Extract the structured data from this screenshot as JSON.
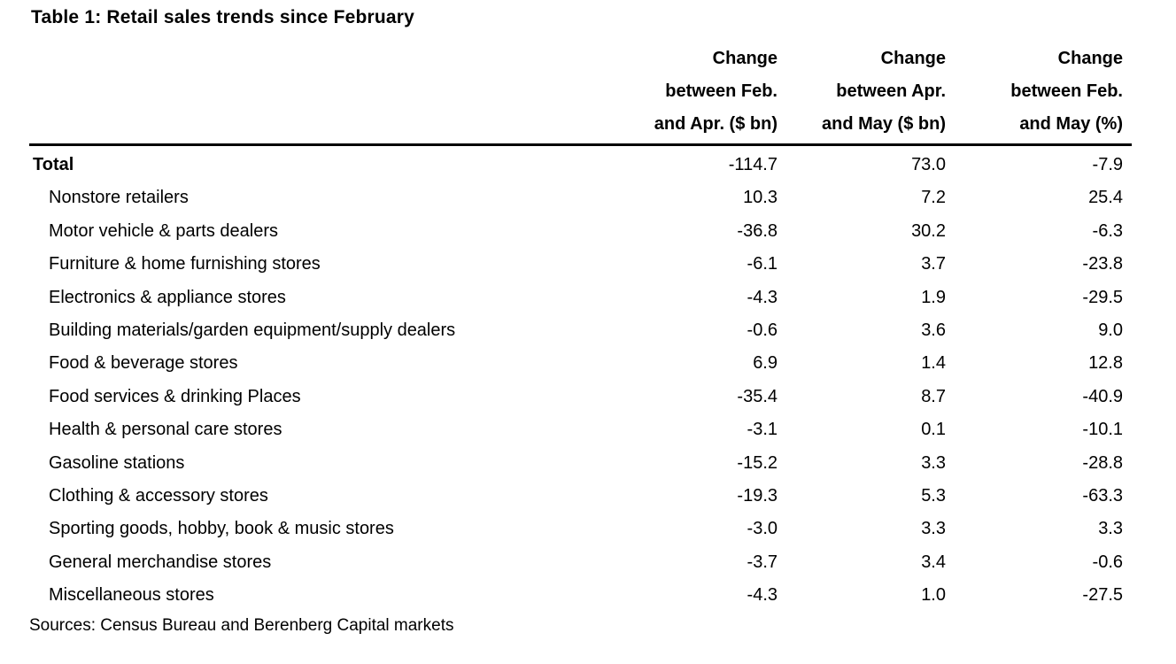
{
  "title": "Table 1: Retail sales trends since February",
  "source": "Sources: Census Bureau and Berenberg Capital markets",
  "chart_data": {
    "type": "table",
    "title": "Table 1: Retail sales trends since February",
    "column_headers": [
      "Change\nbetween Feb.\nand Apr. ($ bn)",
      "Change\nbetween Apr.\nand May ($ bn)",
      "Change\nbetween Feb.\nand May (%)"
    ],
    "columns": [
      "Change between Feb. and Apr. ($ bn)",
      "Change between Apr. and May ($ bn)",
      "Change between Feb. and May (%)"
    ],
    "rows": [
      {
        "label": "Total",
        "bold": true,
        "values": [
          "-114.7",
          "73.0",
          "-7.9"
        ]
      },
      {
        "label": "Nonstore retailers",
        "bold": false,
        "values": [
          "10.3",
          "7.2",
          "25.4"
        ]
      },
      {
        "label": "Motor vehicle & parts dealers",
        "bold": false,
        "values": [
          "-36.8",
          "30.2",
          "-6.3"
        ]
      },
      {
        "label": "Furniture & home furnishing stores",
        "bold": false,
        "values": [
          "-6.1",
          "3.7",
          "-23.8"
        ]
      },
      {
        "label": "Electronics & appliance stores",
        "bold": false,
        "values": [
          "-4.3",
          "1.9",
          "-29.5"
        ]
      },
      {
        "label": "Building materials/garden equipment/supply dealers",
        "bold": false,
        "values": [
          "-0.6",
          "3.6",
          "9.0"
        ]
      },
      {
        "label": "Food & beverage stores",
        "bold": false,
        "values": [
          "6.9",
          "1.4",
          "12.8"
        ]
      },
      {
        "label": "Food services & drinking Places",
        "bold": false,
        "values": [
          "-35.4",
          "8.7",
          "-40.9"
        ]
      },
      {
        "label": "Health & personal care stores",
        "bold": false,
        "values": [
          "-3.1",
          "0.1",
          "-10.1"
        ]
      },
      {
        "label": "Gasoline stations",
        "bold": false,
        "values": [
          "-15.2",
          "3.3",
          "-28.8"
        ]
      },
      {
        "label": "Clothing & accessory stores",
        "bold": false,
        "values": [
          "-19.3",
          "5.3",
          "-63.3"
        ]
      },
      {
        "label": "Sporting goods, hobby, book & music stores",
        "bold": false,
        "values": [
          "-3.0",
          "3.3",
          "3.3"
        ]
      },
      {
        "label": "General merchandise stores",
        "bold": false,
        "values": [
          "-3.7",
          "3.4",
          "-0.6"
        ]
      },
      {
        "label": "Miscellaneous stores",
        "bold": false,
        "values": [
          "-4.3",
          "1.0",
          "-27.5"
        ]
      }
    ]
  }
}
